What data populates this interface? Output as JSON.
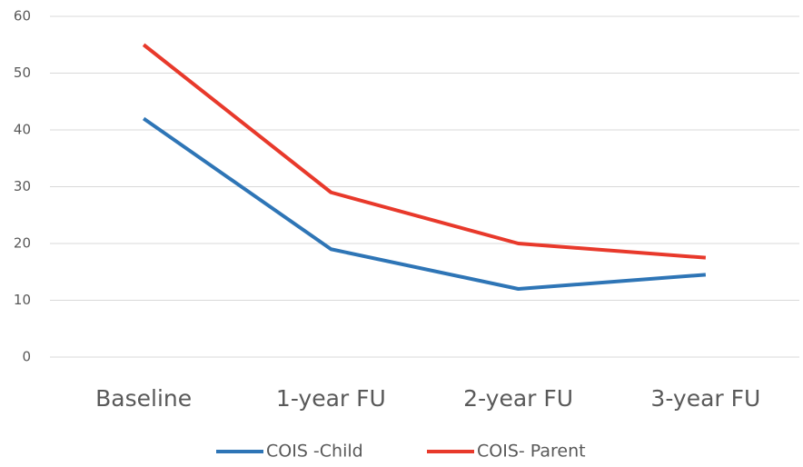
{
  "chart_data": {
    "type": "line",
    "categories": [
      "Baseline",
      "1-year FU",
      "2-year FU",
      "3-year FU"
    ],
    "series": [
      {
        "name": "COIS -Child",
        "color": "#2e75b6",
        "values": [
          42,
          19,
          12,
          14.5
        ]
      },
      {
        "name": "COIS- Parent",
        "color": "#e8392b",
        "values": [
          55,
          29,
          20,
          17.5
        ]
      }
    ],
    "ylim": [
      0,
      60
    ],
    "yticks": [
      0,
      10,
      20,
      30,
      40,
      50,
      60
    ],
    "grid": true,
    "legend": "bottom"
  }
}
